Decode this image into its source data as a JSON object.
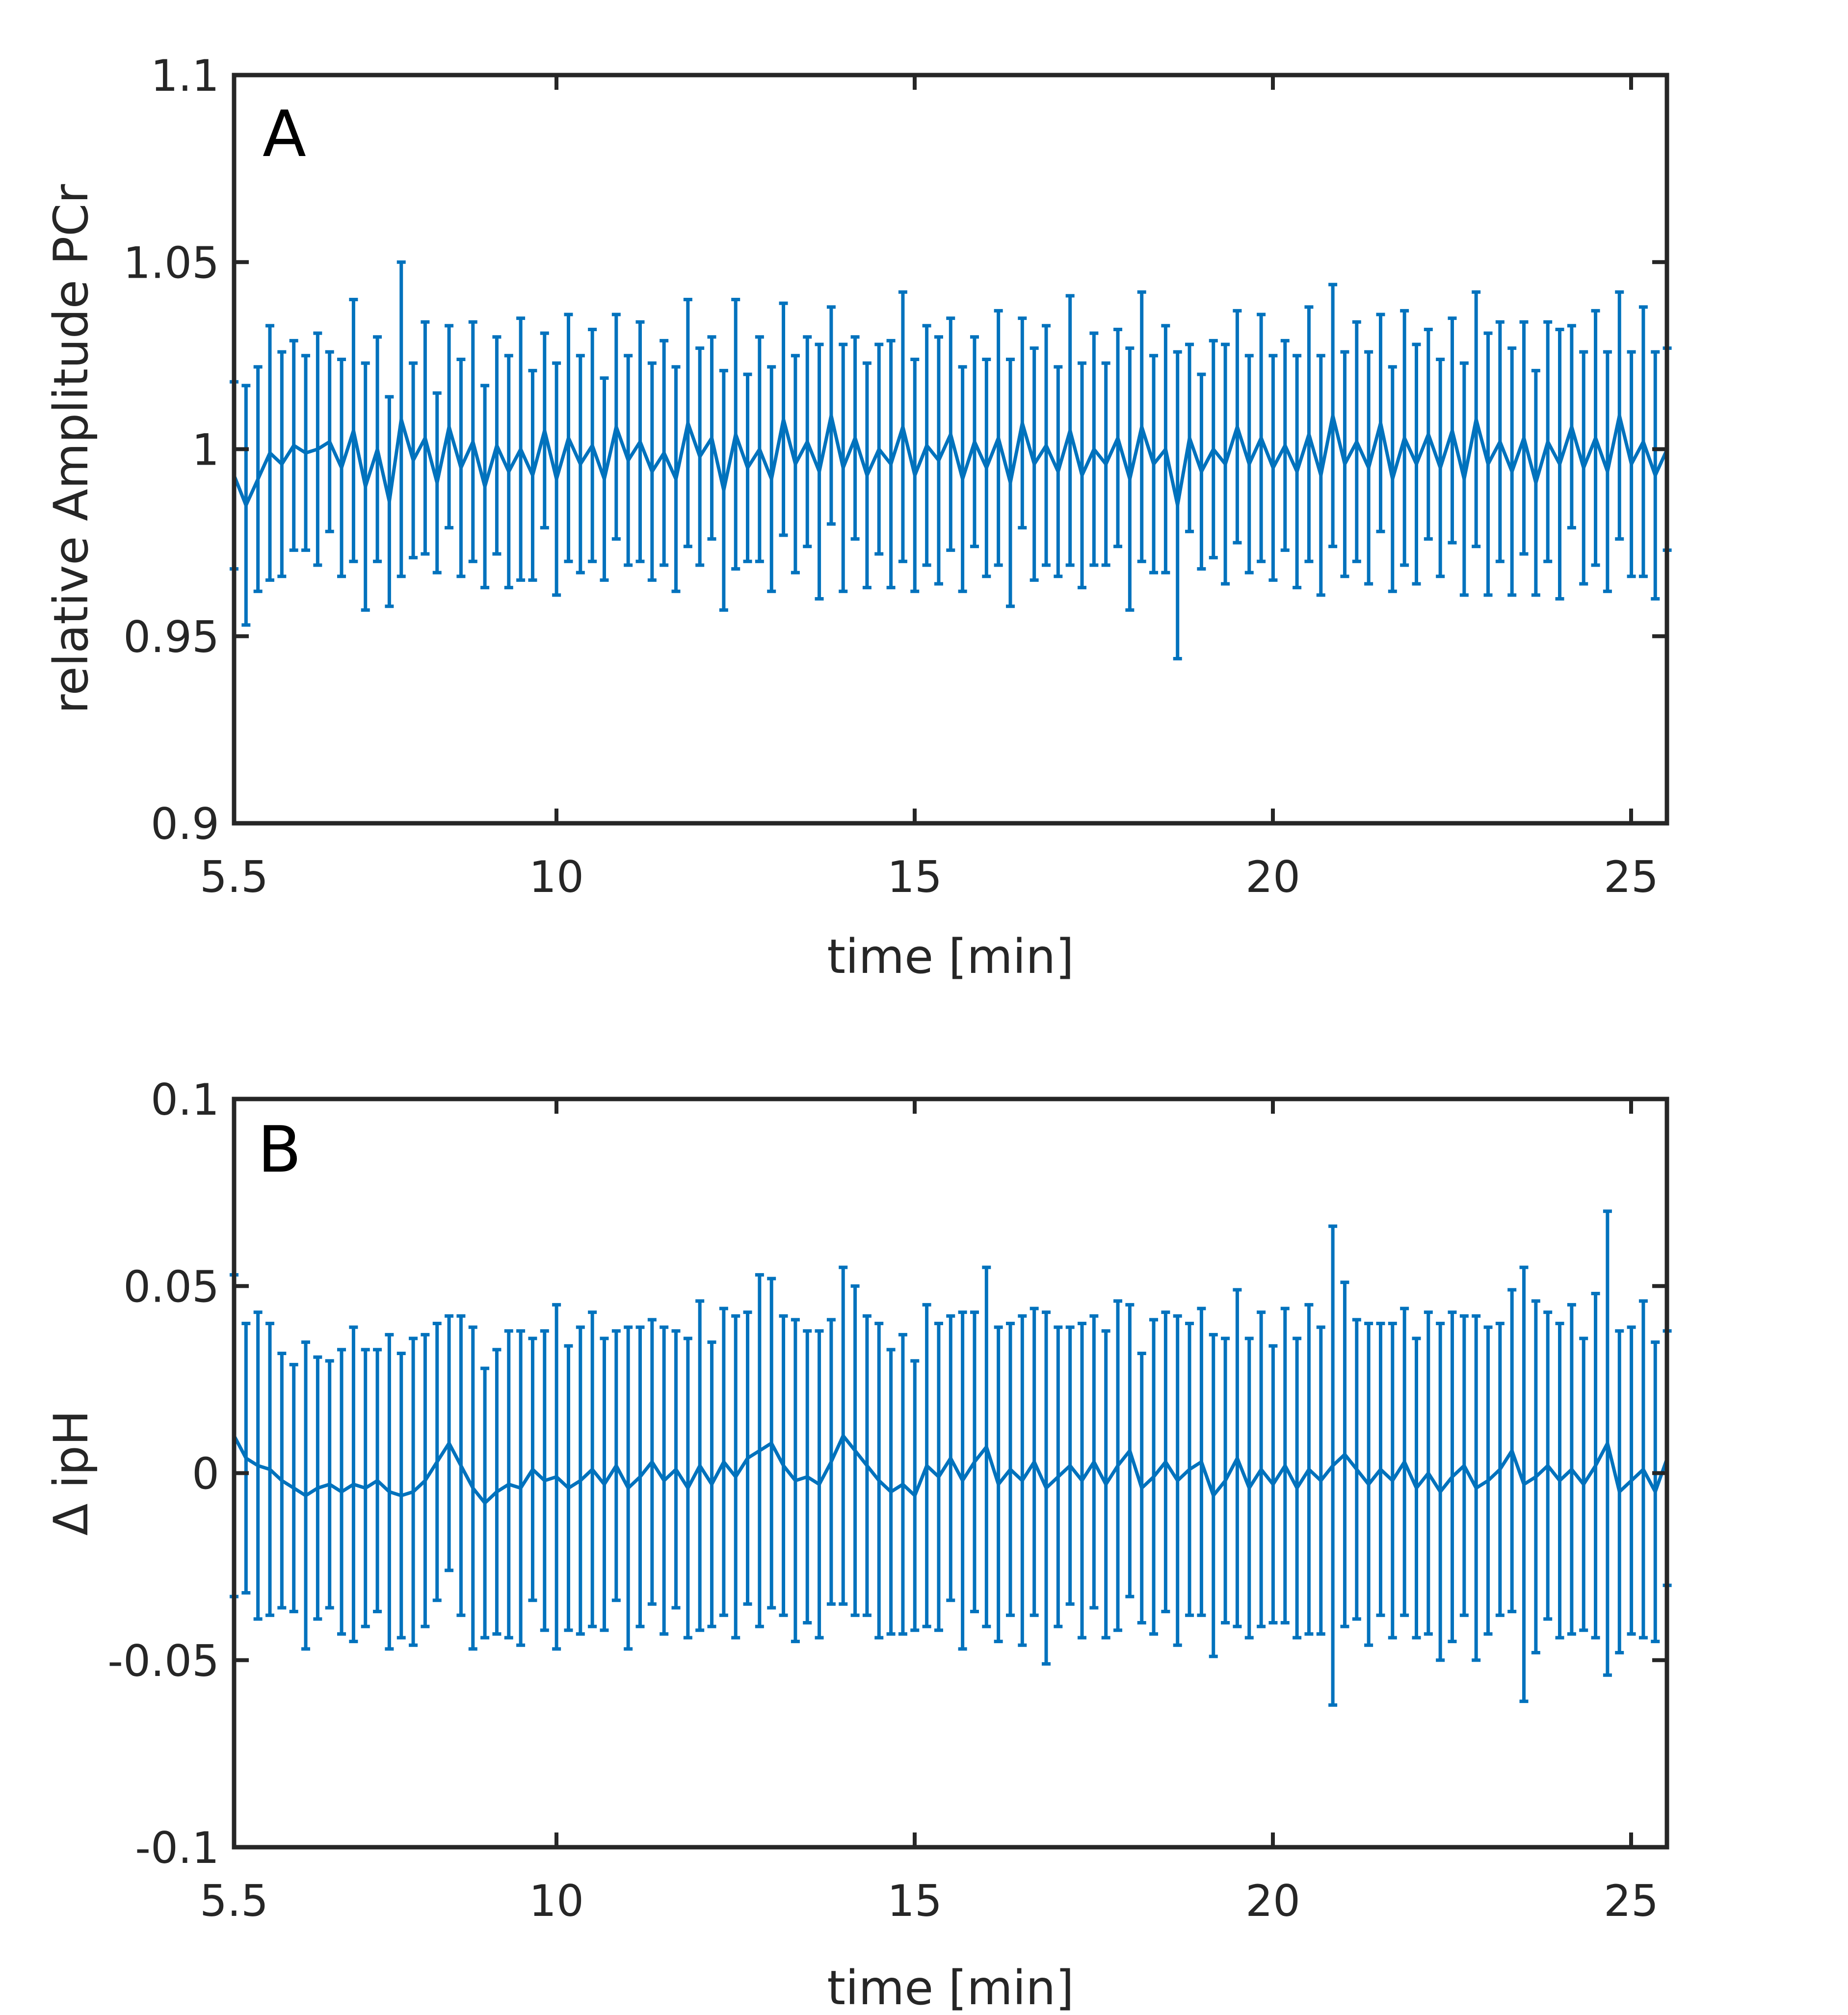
{
  "figure": {
    "series_color": "#0072BD",
    "axis_color": "#262626"
  },
  "chart_data": [
    {
      "type": "line",
      "panel_label": "A",
      "title": "",
      "xlabel": "time [min]",
      "ylabel": "relative Amplitude PCr",
      "xlim": [
        5.5,
        25.5
      ],
      "ylim": [
        0.9,
        1.1
      ],
      "xticks": [
        5.5,
        10,
        15,
        20,
        25
      ],
      "xtick_labels": [
        "5.5",
        "10",
        "15",
        "20",
        "25"
      ],
      "yticks": [
        0.9,
        0.95,
        1,
        1.05,
        1.1
      ],
      "ytick_labels": [
        "0.9",
        "0.95",
        "1",
        "1.05",
        "1.1"
      ],
      "grid": false,
      "error_bars": true,
      "x_step": 0.1667,
      "n_points": 121,
      "series": [
        {
          "name": "relative Amplitude PCr",
          "x_start": 5.5,
          "mean": [
            0.993,
            0.985,
            0.992,
            0.999,
            0.996,
            1.001,
            0.999,
            1.0,
            1.002,
            0.995,
            1.005,
            0.99,
            1.0,
            0.986,
            1.008,
            0.997,
            1.003,
            0.991,
            1.006,
            0.995,
            1.002,
            0.99,
            1.001,
            0.994,
            1.0,
            0.993,
            1.005,
            0.992,
            1.003,
            0.996,
            1.001,
            0.992,
            1.006,
            0.997,
            1.002,
            0.994,
            0.999,
            0.992,
            1.007,
            0.998,
            1.003,
            0.989,
            1.004,
            0.995,
            1.0,
            0.992,
            1.008,
            0.996,
            1.002,
            0.994,
            1.009,
            0.995,
            1.003,
            0.993,
            1.0,
            0.996,
            1.006,
            0.993,
            1.001,
            0.997,
            1.004,
            0.992,
            1.002,
            0.995,
            1.003,
            0.991,
            1.007,
            0.996,
            1.001,
            0.994,
            1.005,
            0.993,
            1.0,
            0.996,
            1.003,
            0.992,
            1.006,
            0.996,
            1.0,
            0.985,
            1.003,
            0.994,
            1.0,
            0.996,
            1.006,
            0.996,
            1.003,
            0.995,
            1.001,
            0.994,
            1.004,
            0.993,
            1.009,
            0.996,
            1.002,
            0.995,
            1.007,
            0.992,
            1.003,
            0.996,
            1.004,
            0.995,
            1.005,
            0.992,
            1.008,
            0.996,
            1.002,
            0.994,
            1.003,
            0.991,
            1.002,
            0.996,
            1.006,
            0.995,
            1.003,
            0.994,
            1.009,
            0.996,
            1.002,
            0.993,
            1.0
          ],
          "err": [
            0.025,
            0.032,
            0.03,
            0.034,
            0.03,
            0.028,
            0.026,
            0.031,
            0.024,
            0.029,
            0.035,
            0.033,
            0.03,
            0.028,
            0.042,
            0.026,
            0.031,
            0.024,
            0.027,
            0.029,
            0.032,
            0.027,
            0.029,
            0.031,
            0.035,
            0.028,
            0.026,
            0.031,
            0.033,
            0.029,
            0.031,
            0.027,
            0.03,
            0.028,
            0.032,
            0.029,
            0.03,
            0.03,
            0.033,
            0.029,
            0.027,
            0.032,
            0.036,
            0.025,
            0.03,
            0.03,
            0.031,
            0.029,
            0.028,
            0.034,
            0.029,
            0.033,
            0.027,
            0.03,
            0.028,
            0.033,
            0.036,
            0.031,
            0.032,
            0.033,
            0.031,
            0.03,
            0.028,
            0.029,
            0.034,
            0.033,
            0.028,
            0.031,
            0.032,
            0.028,
            0.036,
            0.03,
            0.031,
            0.027,
            0.029,
            0.035,
            0.036,
            0.029,
            0.033,
            0.041,
            0.025,
            0.026,
            0.029,
            0.032,
            0.031,
            0.029,
            0.033,
            0.03,
            0.028,
            0.031,
            0.034,
            0.032,
            0.035,
            0.03,
            0.032,
            0.031,
            0.029,
            0.03,
            0.034,
            0.032,
            0.028,
            0.029,
            0.03,
            0.031,
            0.034,
            0.035,
            0.032,
            0.033,
            0.031,
            0.03,
            0.032,
            0.036,
            0.027,
            0.031,
            0.034,
            0.032,
            0.033,
            0.03,
            0.036,
            0.033,
            0.027
          ]
        }
      ]
    },
    {
      "type": "line",
      "panel_label": "B",
      "title": "",
      "xlabel": "time [min]",
      "ylabel": "Δ ipH",
      "xlim": [
        5.5,
        25.5
      ],
      "ylim": [
        -0.1,
        0.1
      ],
      "xticks": [
        5.5,
        10,
        15,
        20,
        25
      ],
      "xtick_labels": [
        "5.5",
        "10",
        "15",
        "20",
        "25"
      ],
      "yticks": [
        -0.1,
        -0.05,
        0,
        0.05,
        0.1
      ],
      "ytick_labels": [
        "-0.1",
        "-0.05",
        "0",
        "0.05",
        "0.1"
      ],
      "grid": false,
      "error_bars": true,
      "x_step": 0.1667,
      "n_points": 121,
      "series": [
        {
          "name": "Δ ipH",
          "x_start": 5.5,
          "mean": [
            0.01,
            0.004,
            0.002,
            0.001,
            -0.002,
            -0.004,
            -0.006,
            -0.004,
            -0.003,
            -0.005,
            -0.003,
            -0.004,
            -0.002,
            -0.005,
            -0.006,
            -0.005,
            -0.002,
            0.003,
            0.008,
            0.002,
            -0.004,
            -0.008,
            -0.005,
            -0.003,
            -0.004,
            0.001,
            -0.002,
            -0.001,
            -0.004,
            -0.002,
            0.001,
            -0.003,
            0.002,
            -0.004,
            -0.001,
            0.003,
            -0.002,
            0.001,
            -0.004,
            0.002,
            -0.003,
            0.003,
            -0.001,
            0.004,
            0.006,
            0.008,
            0.002,
            -0.002,
            -0.001,
            -0.003,
            0.003,
            0.01,
            0.006,
            0.002,
            -0.002,
            -0.005,
            -0.003,
            -0.006,
            0.002,
            -0.001,
            0.004,
            -0.002,
            0.003,
            0.007,
            -0.003,
            0.001,
            -0.002,
            0.003,
            -0.004,
            -0.001,
            0.002,
            -0.002,
            0.003,
            -0.003,
            0.002,
            0.006,
            -0.004,
            -0.001,
            0.003,
            -0.002,
            0.001,
            0.003,
            -0.006,
            -0.002,
            0.004,
            -0.004,
            0.001,
            -0.003,
            0.002,
            -0.004,
            0.001,
            -0.002,
            0.002,
            0.005,
            0.001,
            -0.003,
            0.001,
            -0.002,
            0.003,
            -0.004,
            0.0,
            -0.005,
            -0.001,
            0.002,
            -0.004,
            -0.002,
            0.001,
            0.006,
            -0.003,
            -0.001,
            0.002,
            -0.002,
            0.001,
            -0.003,
            0.002,
            0.008,
            -0.005,
            -0.002,
            0.001,
            -0.005,
            0.004
          ],
          "err": [
            0.043,
            0.036,
            0.041,
            0.039,
            0.034,
            0.033,
            0.041,
            0.035,
            0.033,
            0.038,
            0.042,
            0.037,
            0.035,
            0.042,
            0.038,
            0.041,
            0.039,
            0.037,
            0.034,
            0.04,
            0.043,
            0.036,
            0.038,
            0.041,
            0.042,
            0.035,
            0.04,
            0.046,
            0.038,
            0.041,
            0.042,
            0.039,
            0.036,
            0.043,
            0.04,
            0.038,
            0.041,
            0.037,
            0.04,
            0.044,
            0.038,
            0.041,
            0.043,
            0.039,
            0.047,
            0.044,
            0.04,
            0.043,
            0.039,
            0.041,
            0.038,
            0.045,
            0.044,
            0.04,
            0.042,
            0.038,
            0.04,
            0.036,
            0.043,
            0.041,
            0.038,
            0.045,
            0.04,
            0.048,
            0.042,
            0.039,
            0.044,
            0.041,
            0.047,
            0.04,
            0.037,
            0.042,
            0.039,
            0.041,
            0.044,
            0.039,
            0.036,
            0.042,
            0.04,
            0.044,
            0.039,
            0.041,
            0.043,
            0.038,
            0.045,
            0.04,
            0.042,
            0.037,
            0.042,
            0.04,
            0.044,
            0.041,
            0.064,
            0.046,
            0.04,
            0.043,
            0.039,
            0.042,
            0.041,
            0.04,
            0.043,
            0.045,
            0.044,
            0.04,
            0.046,
            0.041,
            0.039,
            0.043,
            0.058,
            0.047,
            0.041,
            0.042,
            0.044,
            0.039,
            0.046,
            0.062,
            0.043,
            0.041,
            0.045,
            0.04,
            0.034
          ]
        }
      ]
    }
  ]
}
